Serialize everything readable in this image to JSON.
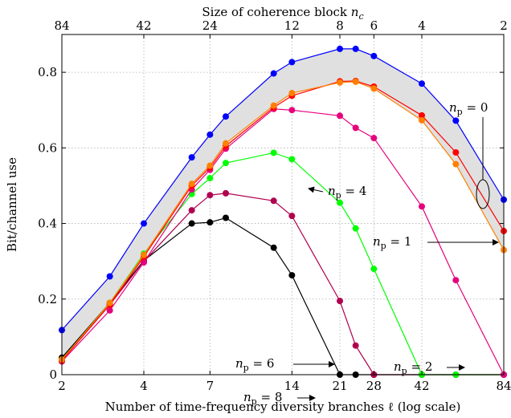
{
  "chart_data": {
    "type": "line",
    "title": "",
    "xlabel": "Number of time-frequency diversity branches ℓ (log scale)",
    "top_xlabel": "Size of coherence block n_c",
    "ylabel": "Bit/channel use",
    "xscale": "log",
    "xlim": [
      2,
      84
    ],
    "ylim": [
      0,
      0.9
    ],
    "grid": true,
    "xticks": [
      2,
      4,
      7,
      14,
      21,
      28,
      42,
      84
    ],
    "xtick_labels": [
      "2",
      "4",
      "7",
      "14",
      "21",
      "28",
      "42",
      "84"
    ],
    "yticks": [
      0,
      0.2,
      0.4,
      0.6,
      0.8
    ],
    "ytick_labels": [
      "0",
      "0.2",
      "0.4",
      "0.6",
      "0.8"
    ],
    "top_ticks_x": [
      2,
      4,
      7,
      14,
      21,
      28,
      42,
      84
    ],
    "top_tick_labels": [
      "84",
      "42",
      "24",
      "12",
      "8",
      "6",
      "4",
      "2"
    ],
    "x": [
      2,
      3,
      4,
      6,
      7,
      8,
      12,
      14,
      21,
      24,
      28,
      42,
      56,
      84
    ],
    "series": [
      {
        "name": "blue",
        "color": "#0000ff",
        "values": [
          0.118,
          0.26,
          0.4,
          0.575,
          0.635,
          0.683,
          0.797,
          0.827,
          0.862,
          0.862,
          0.843,
          0.77,
          0.672,
          0.463
        ]
      },
      {
        "name": "orange",
        "color": "#ff8000",
        "values": [
          0.04,
          0.19,
          0.317,
          0.505,
          0.553,
          0.612,
          0.712,
          0.745,
          0.773,
          0.775,
          0.757,
          0.673,
          0.557,
          0.33
        ]
      },
      {
        "name": "red",
        "color": "#ff0000",
        "values": [
          0.037,
          0.185,
          0.312,
          0.5,
          0.548,
          0.605,
          0.707,
          0.738,
          0.776,
          0.777,
          0.762,
          0.686,
          0.588,
          0.38
        ]
      },
      {
        "name": "magenta",
        "color": "#e6007e",
        "values": [
          0.035,
          0.17,
          0.297,
          0.49,
          0.542,
          0.598,
          0.703,
          0.7,
          0.685,
          0.653,
          0.626,
          0.445,
          0.25,
          0.0
        ]
      },
      {
        "name": "green",
        "color": "#00ff00",
        "values": [
          0.04,
          0.19,
          0.32,
          0.478,
          0.52,
          0.56,
          0.587,
          0.57,
          0.455,
          0.387,
          0.28,
          0.0,
          0.0,
          0.0
        ]
      },
      {
        "name": "crimson",
        "color": "#b0004f",
        "values": [
          0.04,
          0.185,
          0.3,
          0.435,
          0.475,
          0.48,
          0.46,
          0.42,
          0.195,
          0.077,
          0.0,
          0.0,
          0.0,
          0.0
        ]
      },
      {
        "name": "black",
        "color": "#000000",
        "values": [
          0.045,
          0.19,
          0.302,
          0.4,
          0.403,
          0.415,
          0.336,
          0.263,
          0.0,
          0.0,
          0.0,
          0.0,
          0.0,
          0.0
        ]
      }
    ],
    "annotations": [
      {
        "text": "n_p = 0"
      },
      {
        "text": "n_p = 1"
      },
      {
        "text": "n_p = 2"
      },
      {
        "text": "n_p = 4"
      },
      {
        "text": "n_p = 6"
      },
      {
        "text": "n_p = 8"
      }
    ]
  }
}
